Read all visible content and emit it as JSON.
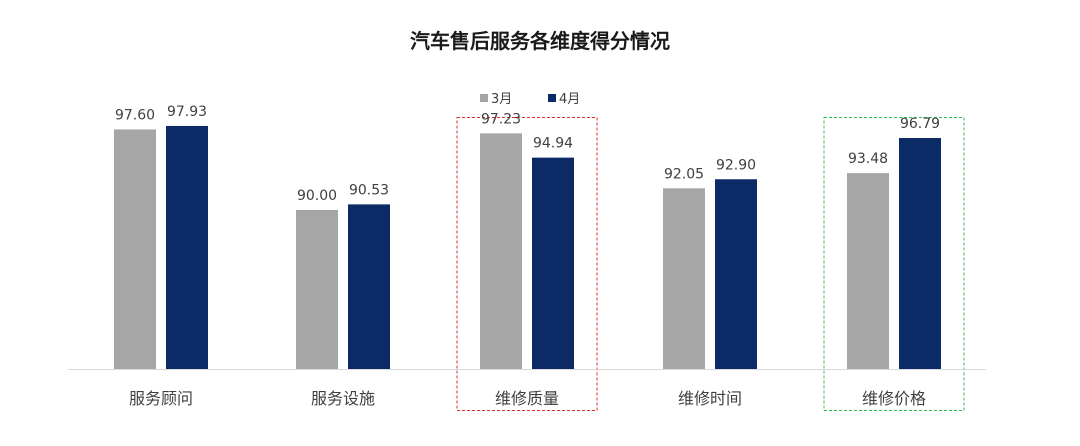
{
  "chart_data": {
    "type": "bar",
    "title": "汽车售后服务各维度得分情况",
    "xlabel": "",
    "ylabel": "",
    "categories": [
      "服务顾问",
      "服务设施",
      "维修质量",
      "维修时间",
      "维修价格"
    ],
    "series": [
      {
        "name": "3月",
        "color": "#a6a6a6",
        "values": [
          97.6,
          90.0,
          97.23,
          92.05,
          93.48
        ],
        "labels": [
          "97.60",
          "90.00",
          "97.23",
          "92.05",
          "93.48"
        ]
      },
      {
        "name": "4月",
        "color": "#0b2a66",
        "values": [
          97.93,
          90.53,
          94.94,
          92.9,
          96.79
        ],
        "labels": [
          "97.93",
          "90.53",
          "94.94",
          "92.90",
          "96.79"
        ]
      }
    ],
    "ylim": [
      75,
      100
    ],
    "grid": false,
    "legend_position": "top-center",
    "highlights": [
      {
        "category": "维修质量",
        "color": "#e03030",
        "style": "dashed"
      },
      {
        "category": "维修价格",
        "color": "#2fbf5a",
        "style": "dashed"
      }
    ]
  },
  "colors": {
    "axis": "#d9d9d9",
    "text": "#404040",
    "title": "#1a1a1a"
  }
}
